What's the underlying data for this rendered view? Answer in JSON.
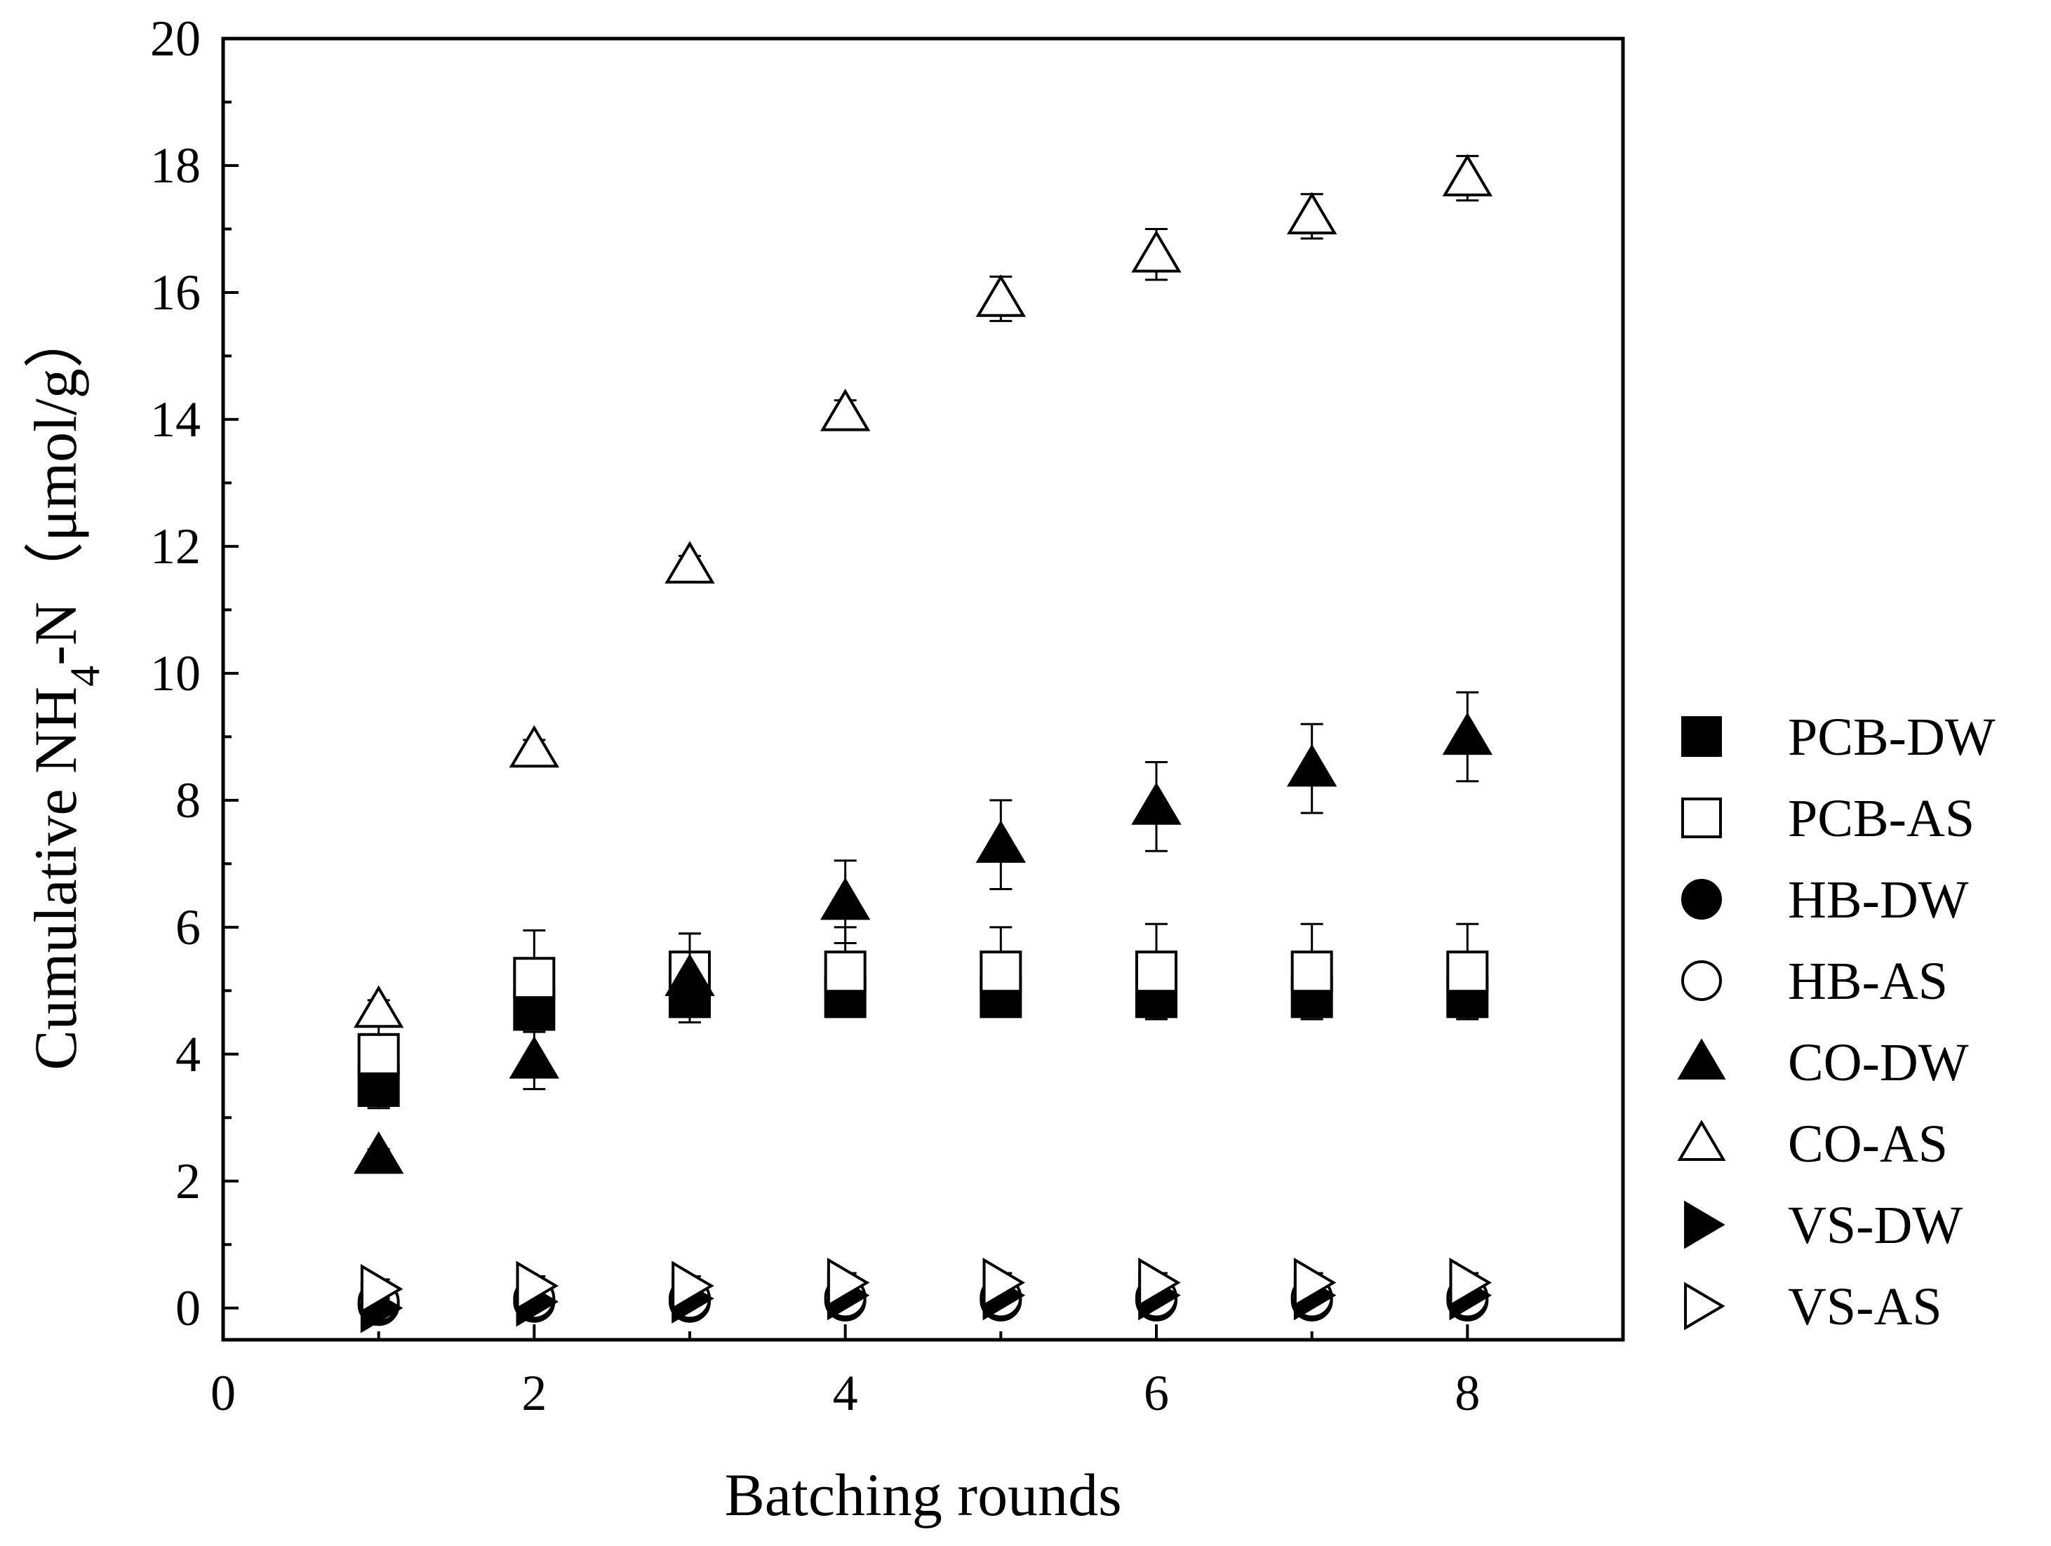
{
  "chart_data": {
    "type": "scatter",
    "xlabel": "Batching rounds",
    "ylabel": {
      "prefix": "Cumulative NH",
      "subscript": "4",
      "suffix": "-N（μmol/g）"
    },
    "xlim": [
      0,
      9
    ],
    "ylim": [
      -0.5,
      20
    ],
    "xticks": [
      0,
      2,
      4,
      6,
      8
    ],
    "xtick_labels": [
      "0",
      "2",
      "4",
      "6",
      "8"
    ],
    "yticks": [
      0,
      2,
      4,
      6,
      8,
      10,
      12,
      14,
      16,
      18,
      20
    ],
    "ytick_labels": [
      "0",
      "2",
      "4",
      "6",
      "8",
      "10",
      "12",
      "14",
      "16",
      "18",
      "20"
    ],
    "grid": false,
    "legend_position": "right",
    "x": [
      1,
      2,
      3,
      4,
      5,
      6,
      7,
      8
    ],
    "series": [
      {
        "name": "PCB-DW",
        "marker": "square",
        "filled": true,
        "values": [
          3.5,
          4.7,
          4.9,
          4.9,
          4.9,
          4.9,
          4.9,
          4.9
        ],
        "err": [
          0.35,
          0.3,
          0.3,
          0.3,
          0.3,
          0.3,
          0.3,
          0.3
        ]
      },
      {
        "name": "PCB-AS",
        "marker": "square",
        "filled": false,
        "values": [
          4.0,
          5.2,
          5.3,
          5.3,
          5.3,
          5.3,
          5.3,
          5.3
        ],
        "err": [
          0.5,
          0.75,
          0.6,
          0.7,
          0.7,
          0.75,
          0.75,
          0.75
        ]
      },
      {
        "name": "HB-DW",
        "marker": "circle",
        "filled": true,
        "values": [
          0.05,
          0.1,
          0.1,
          0.12,
          0.12,
          0.12,
          0.12,
          0.12
        ],
        "err": [
          0.1,
          0.1,
          0.1,
          0.1,
          0.1,
          0.1,
          0.1,
          0.1
        ]
      },
      {
        "name": "HB-AS",
        "marker": "circle",
        "filled": false,
        "values": [
          0.1,
          0.15,
          0.15,
          0.17,
          0.17,
          0.17,
          0.17,
          0.17
        ],
        "err": [
          0.1,
          0.1,
          0.1,
          0.1,
          0.1,
          0.1,
          0.1,
          0.1
        ]
      },
      {
        "name": "CO-DW",
        "marker": "triangle-up",
        "filled": true,
        "values": [
          2.4,
          3.9,
          5.2,
          6.4,
          7.3,
          7.9,
          8.5,
          9.0
        ],
        "err": [
          0.1,
          0.45,
          0.7,
          0.65,
          0.7,
          0.7,
          0.7,
          0.7
        ]
      },
      {
        "name": "CO-AS",
        "marker": "triangle-up",
        "filled": false,
        "values": [
          4.7,
          8.8,
          11.7,
          14.1,
          15.9,
          16.6,
          17.2,
          17.8
        ],
        "err": [
          0.15,
          0.15,
          0.15,
          0.2,
          0.35,
          0.4,
          0.35,
          0.35
        ]
      },
      {
        "name": "VS-DW",
        "marker": "triangle-right",
        "filled": true,
        "values": [
          0.0,
          0.1,
          0.15,
          0.2,
          0.2,
          0.2,
          0.2,
          0.2
        ],
        "err": [
          0.1,
          0.1,
          0.1,
          0.1,
          0.1,
          0.1,
          0.1,
          0.1
        ]
      },
      {
        "name": "VS-AS",
        "marker": "triangle-right",
        "filled": false,
        "values": [
          0.3,
          0.35,
          0.35,
          0.4,
          0.4,
          0.4,
          0.4,
          0.4
        ],
        "err": [
          0.15,
          0.15,
          0.15,
          0.15,
          0.15,
          0.15,
          0.15,
          0.15
        ]
      }
    ]
  }
}
